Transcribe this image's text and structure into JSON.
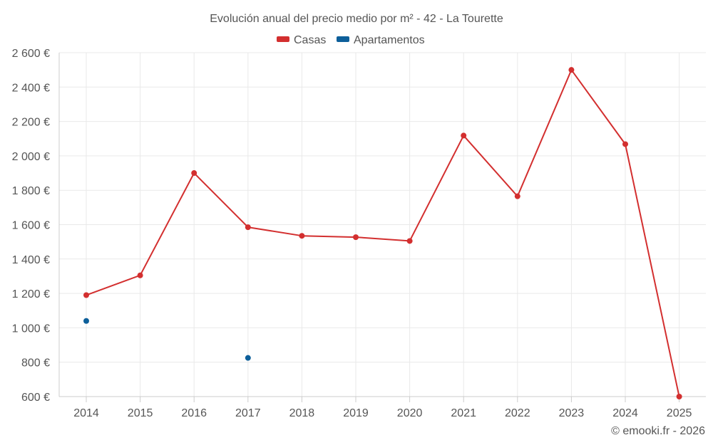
{
  "chart_data": {
    "type": "line",
    "title": "Evolución anual del precio medio por m² - 42 - La Tourette",
    "x": [
      "2014",
      "2015",
      "2016",
      "2017",
      "2018",
      "2019",
      "2020",
      "2021",
      "2022",
      "2023",
      "2024",
      "2025"
    ],
    "ylim": [
      600,
      2600
    ],
    "yticks": [
      600,
      800,
      1000,
      1200,
      1400,
      1600,
      1800,
      2000,
      2200,
      2400,
      2600
    ],
    "ytick_labels": [
      "600 €",
      "800 €",
      "1 000 €",
      "1 200 €",
      "1 400 €",
      "1 600 €",
      "1 800 €",
      "2 000 €",
      "2 200 €",
      "2 400 €",
      "2 600 €"
    ],
    "grid": true,
    "legend_position": "top-center",
    "series": [
      {
        "name": "Casas",
        "color": "#d32f2f",
        "show_line": true,
        "values": [
          1190,
          1305,
          1900,
          1585,
          1535,
          1527,
          1505,
          2118,
          1765,
          2500,
          2068,
          600
        ]
      },
      {
        "name": "Apartamentos",
        "color": "#0d5f9a",
        "show_line": false,
        "values": [
          1040,
          null,
          null,
          825,
          null,
          null,
          null,
          null,
          null,
          null,
          null,
          null
        ]
      }
    ]
  },
  "credit": "© emooki.fr - 2026"
}
